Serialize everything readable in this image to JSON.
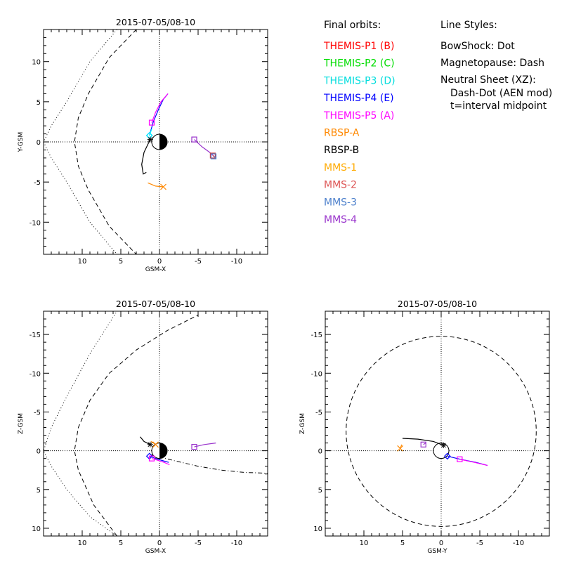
{
  "chart_data": [
    {
      "type": "line",
      "title": "2015-07-05/08-10",
      "xlabel": "GSM-X",
      "ylabel": "Y-GSM",
      "xlim": [
        15,
        -14
      ],
      "ylim": [
        14,
        -14
      ],
      "x_reversed": true,
      "y_reversed": true,
      "xticks": [
        10,
        5,
        0,
        -5,
        -10
      ],
      "yticks": [
        -10,
        -5,
        0,
        5,
        10
      ],
      "series": [
        {
          "name": "THEMIS-P4 (E)",
          "color": "#0000ff",
          "style": "solid",
          "x": [
            1.3,
            0.8,
            0.1,
            -0.5,
            -1.1
          ],
          "y": [
            0.8,
            2.5,
            4.1,
            5.3,
            6.0
          ],
          "end_marker": "diamond"
        },
        {
          "name": "THEMIS-P3 (D)",
          "color": "#00ffff",
          "style": "solid",
          "x": [
            1.3,
            1.0
          ],
          "y": [
            0.8,
            1.6
          ],
          "end_marker": "diamond"
        },
        {
          "name": "THEMIS-P5 (A)",
          "color": "#ff00ff",
          "style": "solid",
          "x": [
            1.0,
            0.5,
            -0.2,
            -1.1
          ],
          "y": [
            2.4,
            3.7,
            5.0,
            6.0
          ],
          "end_marker": "square"
        },
        {
          "name": "MMS-4",
          "color": "#9933cc",
          "style": "solid",
          "x": [
            -4.5,
            -5.5,
            -6.5,
            -7.3
          ],
          "y": [
            0.3,
            -0.6,
            -1.3,
            -2.0
          ],
          "end_marker": "square"
        },
        {
          "name": "MMS-2",
          "color": "#cc4444",
          "style": "solid",
          "x": [
            -6.9,
            -7.3
          ],
          "y": [
            -1.7,
            -2.0
          ],
          "end_marker": "square"
        },
        {
          "name": "MMS-3",
          "color": "#4d80cc",
          "style": "solid",
          "x": [
            -7.0,
            -7.3
          ],
          "y": [
            -1.8,
            -2.0
          ],
          "end_marker": "square"
        },
        {
          "name": "RBSP-A",
          "color": "#ff8800",
          "style": "solid",
          "x": [
            -0.5,
            0.5,
            1.5
          ],
          "y": [
            -5.6,
            -5.5,
            -5.1
          ],
          "end_marker": "x"
        },
        {
          "name": "RBSP-B",
          "color": "#000000",
          "style": "solid",
          "x": [
            1.2,
            2.0,
            2.3,
            2.1,
            1.7
          ],
          "y": [
            0.3,
            -1.3,
            -2.8,
            -4.0,
            -3.8
          ],
          "end_marker": "star"
        }
      ],
      "boundaries": [
        {
          "name": "Bow shock",
          "style": "dotted",
          "x": [
            5.5,
            9,
            12,
            14,
            15,
            14,
            12,
            9,
            5.5
          ],
          "y": [
            14,
            10,
            5,
            2,
            0,
            -2,
            -5,
            -10,
            -14
          ]
        },
        {
          "name": "Magnetopause",
          "style": "dashed",
          "x": [
            3,
            6.5,
            9.2,
            10.5,
            11,
            10.5,
            9.2,
            6.5,
            3
          ],
          "y": [
            14,
            10.5,
            6,
            3,
            0,
            -3,
            -6,
            -10.5,
            -14
          ]
        }
      ]
    },
    {
      "type": "line",
      "title": "2015-07-05/08-10",
      "xlabel": "GSM-X",
      "ylabel": "Z-GSM",
      "xlim": [
        15,
        -14
      ],
      "ylim": [
        -18,
        11
      ],
      "x_reversed": true,
      "y_reversed": false,
      "xticks": [
        10,
        5,
        0,
        -5,
        -10
      ],
      "yticks": [
        -15,
        -10,
        -5,
        0,
        5,
        10
      ],
      "series": [
        {
          "name": "THEMIS-P4 (E)",
          "color": "#0000ff",
          "style": "solid",
          "x": [
            1.3,
            0.5,
            -0.5,
            -1.2
          ],
          "y": [
            0.7,
            1.0,
            1.3,
            1.5
          ],
          "end_marker": "diamond"
        },
        {
          "name": "THEMIS-P5 (A)",
          "color": "#ff00ff",
          "style": "solid",
          "x": [
            1.0,
            0.3,
            -0.6,
            -1.3
          ],
          "y": [
            1.0,
            1.2,
            1.5,
            1.8
          ],
          "end_marker": "square"
        },
        {
          "name": "MMS-4",
          "color": "#9933cc",
          "style": "solid",
          "x": [
            -4.5,
            -5.8,
            -7.3
          ],
          "y": [
            -0.5,
            -0.8,
            -1.0
          ],
          "end_marker": "square"
        },
        {
          "name": "RBSP-A",
          "color": "#ff8800",
          "style": "solid",
          "x": [
            0.5,
            1.1
          ],
          "y": [
            -0.8,
            -1.2
          ],
          "end_marker": "x"
        },
        {
          "name": "RBSP-B",
          "color": "#000000",
          "style": "solid",
          "x": [
            1.2,
            2.0,
            2.5
          ],
          "y": [
            -0.8,
            -1.2,
            -1.8
          ],
          "end_marker": "star"
        }
      ],
      "neutral_sheet": {
        "style": "dashdot",
        "x": [
          1.2,
          -2,
          -5,
          -8,
          -11,
          -14
        ],
        "y": [
          0.5,
          1.3,
          2.0,
          2.5,
          2.8,
          2.9
        ]
      },
      "boundaries": [
        {
          "name": "Bow shock",
          "style": "dotted",
          "x": [
            5.5,
            9,
            12,
            14,
            15,
            14,
            12,
            9,
            5.5
          ],
          "y": [
            11,
            8.5,
            5,
            2,
            0,
            -3,
            -7,
            -12.5,
            -18
          ]
        },
        {
          "name": "Magnetopause",
          "style": "dashed",
          "x": [
            5.5,
            8.5,
            10.5,
            11,
            10.5,
            9,
            6.5,
            3,
            -1,
            -5
          ],
          "y": [
            11,
            7,
            2.5,
            0,
            -3,
            -6.5,
            -10,
            -13,
            -15.5,
            -17.5
          ]
        }
      ]
    },
    {
      "type": "line",
      "title": "2015-07-05/08-10",
      "xlabel": "GSM-Y",
      "ylabel": "Z-GSM",
      "xlim": [
        15,
        -14
      ],
      "ylim": [
        -18,
        11
      ],
      "x_reversed": true,
      "y_reversed": false,
      "xticks": [
        10,
        5,
        0,
        -5,
        -10
      ],
      "yticks": [
        -15,
        -10,
        -5,
        0,
        5,
        10
      ],
      "series": [
        {
          "name": "THEMIS-P4 (E)",
          "color": "#0000ff",
          "style": "solid",
          "x": [
            -0.8,
            -2.5,
            -4.5,
            -6.0
          ],
          "y": [
            0.7,
            1.1,
            1.5,
            1.9
          ],
          "end_marker": "diamond"
        },
        {
          "name": "THEMIS-P5 (A)",
          "color": "#ff00ff",
          "style": "solid",
          "x": [
            -2.4,
            -4.3,
            -6.0
          ],
          "y": [
            1.1,
            1.5,
            1.9
          ],
          "end_marker": "square"
        },
        {
          "name": "MMS-4",
          "color": "#9933cc",
          "style": "solid",
          "x": [
            2.3,
            2.0
          ],
          "y": [
            -0.8,
            -1.0
          ],
          "end_marker": "square"
        },
        {
          "name": "RBSP-A",
          "color": "#ff8800",
          "style": "solid",
          "x": [
            5.3,
            5.1
          ],
          "y": [
            -0.3,
            -0.8
          ],
          "end_marker": "x"
        },
        {
          "name": "RBSP-B",
          "color": "#000000",
          "style": "solid",
          "x": [
            -0.3,
            1.0,
            3.0,
            5.0
          ],
          "y": [
            -0.7,
            -1.2,
            -1.5,
            -1.6
          ],
          "end_marker": "star"
        }
      ],
      "boundaries": [
        {
          "name": "Magnetopause",
          "style": "dashed",
          "circle": {
            "cx": 0,
            "cy": -2.5,
            "r": 12.3
          }
        }
      ]
    }
  ],
  "legend": {
    "orbits_title": "Final orbits:",
    "items": [
      {
        "label": "THEMIS-P1 (B)",
        "color": "#ff0000"
      },
      {
        "label": "THEMIS-P2 (C)",
        "color": "#00dd00"
      },
      {
        "label": "THEMIS-P3 (D)",
        "color": "#00dddd"
      },
      {
        "label": "THEMIS-P4 (E)",
        "color": "#0000ff"
      },
      {
        "label": "THEMIS-P5 (A)",
        "color": "#ff00ff"
      },
      {
        "label": "RBSP-A",
        "color": "#ff8800"
      },
      {
        "label": "RBSP-B",
        "color": "#000000"
      },
      {
        "label": "MMS-1",
        "color": "#ffaa00"
      },
      {
        "label": "MMS-2",
        "color": "#dd5555"
      },
      {
        "label": "MMS-3",
        "color": "#4d80cc"
      },
      {
        "label": "MMS-4",
        "color": "#9933cc"
      }
    ],
    "styles_title": "Line Styles:",
    "style_lines": [
      "BowShock: Dot",
      "Magnetopause: Dash",
      "Neutral Sheet (XZ):",
      "Dash-Dot (AEN mod)",
      "t=interval midpoint"
    ]
  }
}
